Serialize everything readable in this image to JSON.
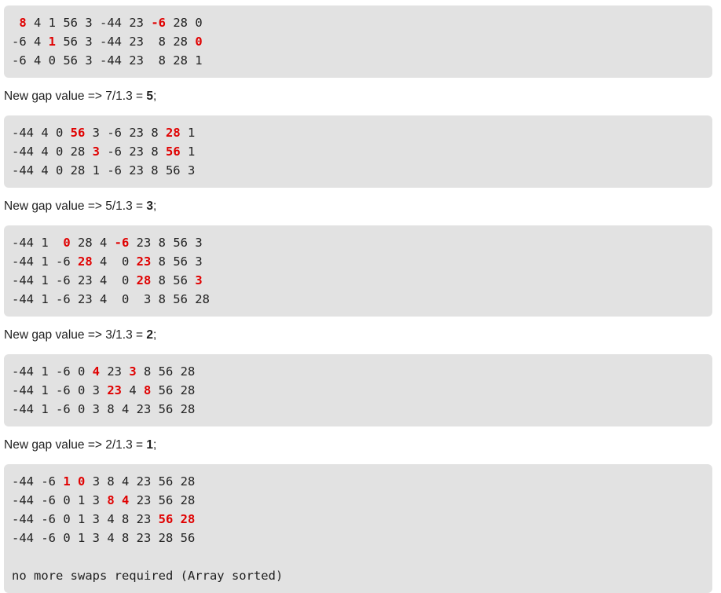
{
  "blocks": [
    {
      "type": "code",
      "lines": [
        [
          {
            "t": " "
          },
          {
            "t": "8",
            "h": true
          },
          {
            "t": " 4 1 56 3 -44 23 "
          },
          {
            "t": "-6",
            "h": true
          },
          {
            "t": " 28 0"
          }
        ],
        [
          {
            "t": "-6 4 "
          },
          {
            "t": "1",
            "h": true
          },
          {
            "t": " 56 3 -44 23  8 28 "
          },
          {
            "t": "0",
            "h": true
          }
        ],
        [
          {
            "t": "-6 4 0 56 3 -44 23  8 28 1"
          }
        ]
      ]
    },
    {
      "type": "gap",
      "prefix": "New gap value => 7/1.3 = ",
      "value": "5",
      "suffix": ";"
    },
    {
      "type": "code",
      "lines": [
        [
          {
            "t": "-44 4 0 "
          },
          {
            "t": "56",
            "h": true
          },
          {
            "t": " 3 -6 23 8 "
          },
          {
            "t": "28",
            "h": true
          },
          {
            "t": " 1"
          }
        ],
        [
          {
            "t": "-44 4 0 28 "
          },
          {
            "t": "3",
            "h": true
          },
          {
            "t": " -6 23 8 "
          },
          {
            "t": "56",
            "h": true
          },
          {
            "t": " 1"
          }
        ],
        [
          {
            "t": "-44 4 0 28 1 -6 23 8 56 3"
          }
        ]
      ]
    },
    {
      "type": "gap",
      "prefix": "New gap value => 5/1.3 = ",
      "value": "3",
      "suffix": ";"
    },
    {
      "type": "code",
      "lines": [
        [
          {
            "t": "-44 1  "
          },
          {
            "t": "0",
            "h": true
          },
          {
            "t": " 28 4 "
          },
          {
            "t": "-6",
            "h": true
          },
          {
            "t": " 23 8 56 3"
          }
        ],
        [
          {
            "t": "-44 1 -6 "
          },
          {
            "t": "28",
            "h": true
          },
          {
            "t": " 4  0 "
          },
          {
            "t": "23",
            "h": true
          },
          {
            "t": " 8 56 3"
          }
        ],
        [
          {
            "t": "-44 1 -6 23 4  0 "
          },
          {
            "t": "28",
            "h": true
          },
          {
            "t": " 8 56 "
          },
          {
            "t": "3",
            "h": true
          }
        ],
        [
          {
            "t": "-44 1 -6 23 4  0  3 8 56 28"
          }
        ]
      ]
    },
    {
      "type": "gap",
      "prefix": "New gap value => 3/1.3 = ",
      "value": "2",
      "suffix": ";"
    },
    {
      "type": "code",
      "lines": [
        [
          {
            "t": "-44 1 -6 0 "
          },
          {
            "t": "4",
            "h": true
          },
          {
            "t": " 23 "
          },
          {
            "t": "3",
            "h": true
          },
          {
            "t": " 8 56 28"
          }
        ],
        [
          {
            "t": "-44 1 -6 0 3 "
          },
          {
            "t": "23",
            "h": true
          },
          {
            "t": " 4 "
          },
          {
            "t": "8",
            "h": true
          },
          {
            "t": " 56 28"
          }
        ],
        [
          {
            "t": "-44 1 -6 0 3 8 4 23 56 28"
          }
        ]
      ]
    },
    {
      "type": "gap",
      "prefix": "New gap value => 2/1.3 = ",
      "value": "1",
      "suffix": ";"
    },
    {
      "type": "code",
      "lines": [
        [
          {
            "t": "-44 -6 "
          },
          {
            "t": "1",
            "h": true
          },
          {
            "t": " "
          },
          {
            "t": "0",
            "h": true
          },
          {
            "t": " 3 8 4 23 56 28"
          }
        ],
        [
          {
            "t": "-44 -6 0 1 3 "
          },
          {
            "t": "8",
            "h": true
          },
          {
            "t": " "
          },
          {
            "t": "4",
            "h": true
          },
          {
            "t": " 23 56 28"
          }
        ],
        [
          {
            "t": "-44 -6 0 1 3 4 8 23 "
          },
          {
            "t": "56",
            "h": true
          },
          {
            "t": " "
          },
          {
            "t": "28",
            "h": true
          }
        ],
        [
          {
            "t": "-44 -6 0 1 3 4 8 23 28 56"
          }
        ],
        [],
        [
          {
            "t": "no more swaps required (Array sorted)"
          }
        ]
      ]
    }
  ],
  "colors": {
    "highlight": "#e00000",
    "code_background": "#e2e2e2",
    "text": "#222222"
  }
}
